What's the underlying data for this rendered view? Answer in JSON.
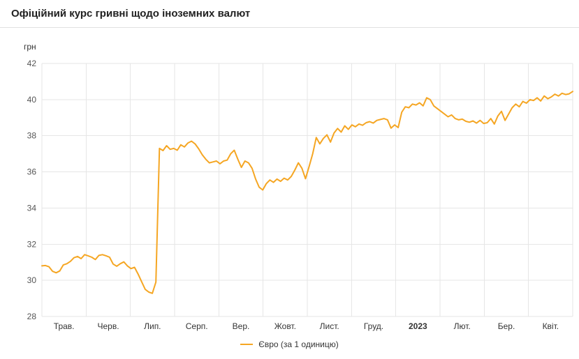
{
  "header": {
    "title": "Офіційний курс гривні щодо іноземних валют"
  },
  "chart_data": {
    "type": "line",
    "title": "Офіційний курс гривні щодо іноземних валют",
    "unit_label": "грн",
    "ylim": [
      28,
      42
    ],
    "yticks": [
      28,
      30,
      32,
      34,
      36,
      38,
      40,
      42
    ],
    "x_tick_labels": [
      "Трав.",
      "Черв.",
      "Лип.",
      "Серп.",
      "Вер.",
      "Жовт.",
      "Лист.",
      "Груд.",
      "2023",
      "Лют.",
      "Бер.",
      "Квіт."
    ],
    "x_bold_label": "2023",
    "grid": true,
    "grid_color": "#e6e6e6",
    "legend_position": "bottom",
    "series": [
      {
        "name": "Євро (за 1 одиницю)",
        "color": "#f5a623",
        "values": [
          30.8,
          30.82,
          30.75,
          30.5,
          30.42,
          30.52,
          30.85,
          30.92,
          31.05,
          31.25,
          31.32,
          31.2,
          31.42,
          31.35,
          31.28,
          31.15,
          31.38,
          31.42,
          31.36,
          31.28,
          30.9,
          30.78,
          30.92,
          31.02,
          30.8,
          30.65,
          30.72,
          30.35,
          29.92,
          29.5,
          29.35,
          29.28,
          29.9,
          37.3,
          37.18,
          37.45,
          37.25,
          37.3,
          37.2,
          37.5,
          37.38,
          37.6,
          37.7,
          37.55,
          37.28,
          36.95,
          36.7,
          36.5,
          36.55,
          36.6,
          36.45,
          36.6,
          36.65,
          37.0,
          37.2,
          36.7,
          36.25,
          36.6,
          36.5,
          36.2,
          35.6,
          35.15,
          35.0,
          35.35,
          35.55,
          35.42,
          35.6,
          35.48,
          35.65,
          35.55,
          35.75,
          36.1,
          36.5,
          36.2,
          35.62,
          36.3,
          37.0,
          37.9,
          37.55,
          37.85,
          38.05,
          37.65,
          38.15,
          38.4,
          38.2,
          38.55,
          38.35,
          38.6,
          38.5,
          38.65,
          38.58,
          38.72,
          38.78,
          38.7,
          38.85,
          38.9,
          38.95,
          38.88,
          38.42,
          38.6,
          38.45,
          39.3,
          39.6,
          39.55,
          39.75,
          39.7,
          39.82,
          39.65,
          40.1,
          40.0,
          39.65,
          39.5,
          39.35,
          39.2,
          39.05,
          39.15,
          38.95,
          38.88,
          38.92,
          38.8,
          38.75,
          38.82,
          38.7,
          38.85,
          38.68,
          38.72,
          38.95,
          38.65,
          39.1,
          39.35,
          38.85,
          39.2,
          39.55,
          39.75,
          39.6,
          39.9,
          39.8,
          40.0,
          39.95,
          40.1,
          39.92,
          40.2,
          40.05,
          40.15,
          40.3,
          40.2,
          40.35,
          40.28,
          40.32,
          40.45
        ]
      }
    ]
  }
}
